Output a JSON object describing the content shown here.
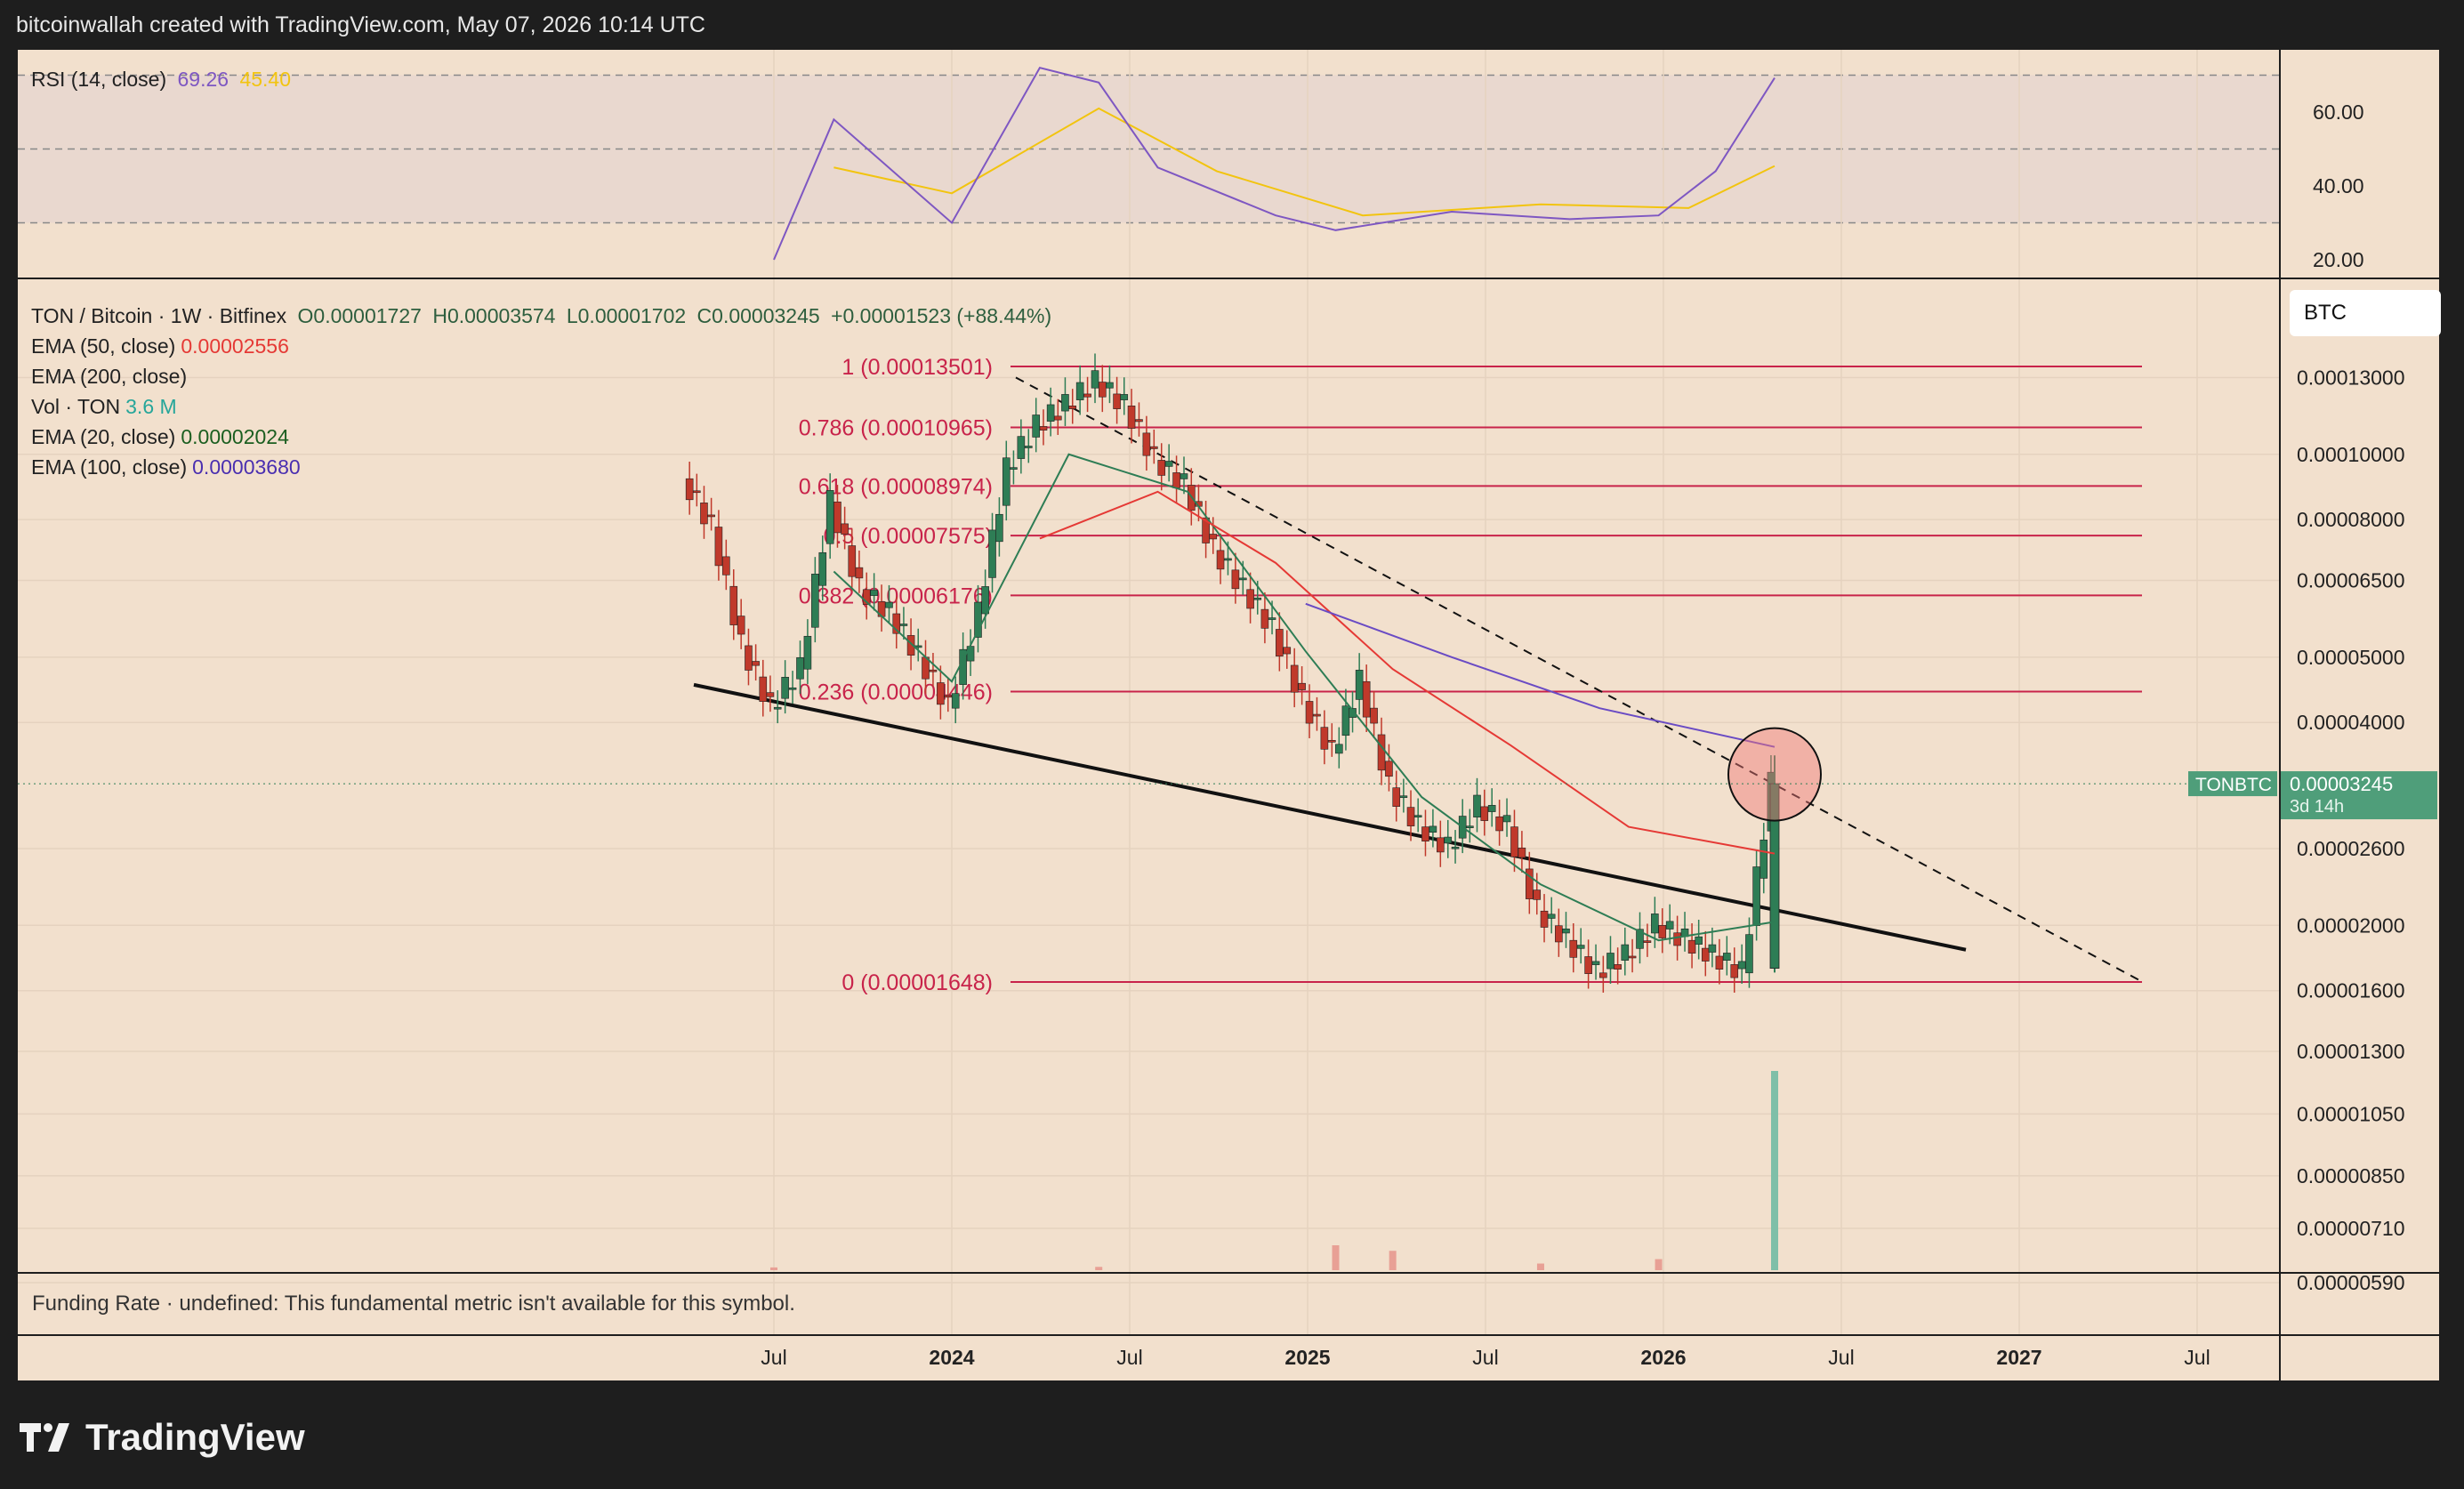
{
  "header": "bitcoinwallah created with TradingView.com, May 07, 2026 10:14 UTC",
  "rsi": {
    "label": "RSI (14, close)",
    "value": "69.26",
    "ma_value": "45.40",
    "ticks": [
      "60.00",
      "40.00",
      "20.00"
    ]
  },
  "legend": {
    "symbol": "TON / Bitcoin · 1W · Bitfinex",
    "o": "O0.00001727",
    "h": "H0.00003574",
    "l": "L0.00001702",
    "c": "C0.00003245",
    "change": "+0.00001523 (+88.44%)",
    "ema50_label": "EMA (50, close)",
    "ema50_value": "0.00002556",
    "ema200_label": "EMA (200, close)",
    "vol_label": "Vol · TON",
    "vol_value": "3.6 M",
    "ema20_label": "EMA (20, close)",
    "ema20_value": "0.00002024",
    "ema100_label": "EMA (100, close)",
    "ema100_value": "0.00003680"
  },
  "currency_button": "BTC",
  "price_ticks": [
    "0.00013000",
    "0.00010000",
    "0.00008000",
    "0.00006500",
    "0.00005000",
    "0.00004000",
    "0.00002600",
    "0.00002000",
    "0.00001600",
    "0.00001300",
    "0.00001050",
    "0.00000850",
    "0.00000710",
    "0.00000590"
  ],
  "price_tag": {
    "symbol": "TONBTC",
    "value": "0.00003245",
    "countdown": "3d 14h"
  },
  "time_ticks": [
    "Jul",
    "2024",
    "Jul",
    "2025",
    "Jul",
    "2026",
    "Jul",
    "2027",
    "Jul"
  ],
  "funding_text": "Funding Rate · undefined: This fundamental metric isn't available for this symbol.",
  "logo_text": "TradingView",
  "colors": {
    "background": "#f2e0cd",
    "up": "#2e7d55",
    "down": "#c0392b",
    "fib": "#c8234a",
    "ema20": "#2e7d55",
    "ema50": "#e53935",
    "ema100": "#6a4bc4",
    "rsi": "#7e57c2",
    "rsi_ma": "#f2c40f"
  },
  "chart_data": {
    "type": "candlestick",
    "symbol": "TON / Bitcoin",
    "interval": "1W",
    "exchange": "Bitfinex",
    "scale": "log",
    "fibonacci": [
      {
        "level": "1",
        "price": 0.00013501,
        "label": "1 (0.00013501)"
      },
      {
        "level": "0.786",
        "price": 0.00010965,
        "label": "0.786 (0.00010965)"
      },
      {
        "level": "0.618",
        "price": 8.974e-05,
        "label": "0.618 (0.00008974)"
      },
      {
        "level": "0.5",
        "price": 7.575e-05,
        "label": "0.5 (0.00007575)"
      },
      {
        "level": "0.382",
        "price": 6.176e-05,
        "label": "0.382 (0.00006176)"
      },
      {
        "level": "0.236",
        "price": 4.446e-05,
        "label": "0.236 (0.00004446)"
      },
      {
        "level": "0",
        "price": 1.648e-05,
        "label": "0 (0.00001648)"
      }
    ],
    "last_candle": {
      "open": 1.727e-05,
      "high": 3.574e-05,
      "low": 1.702e-05,
      "close": 3.245e-05
    },
    "price_path": [
      [
        "2023-04",
        9.2e-05
      ],
      [
        "2023-05",
        7.8e-05
      ],
      [
        "2023-06",
        5.2e-05
      ],
      [
        "2023-07",
        4.2e-05
      ],
      [
        "2023-08",
        4.8e-05
      ],
      [
        "2023-09",
        8.5e-05
      ],
      [
        "2023-10",
        6.3e-05
      ],
      [
        "2023-11",
        5.8e-05
      ],
      [
        "2023-12",
        5e-05
      ],
      [
        "2024-01",
        4.2e-05
      ],
      [
        "2024-02",
        5.8e-05
      ],
      [
        "2024-03",
        9.5e-05
      ],
      [
        "2024-04",
        0.00011
      ],
      [
        "2024-05",
        0.000118
      ],
      [
        "2024-06",
        0.000128
      ],
      [
        "2024-07",
        0.000118
      ],
      [
        "2024-08",
        9.8e-05
      ],
      [
        "2024-09",
        9e-05
      ],
      [
        "2024-10",
        7.2e-05
      ],
      [
        "2024-11",
        6.3e-05
      ],
      [
        "2024-12",
        5.5e-05
      ],
      [
        "2025-01",
        4.3e-05
      ],
      [
        "2025-02",
        3.6e-05
      ],
      [
        "2025-03",
        4.6e-05
      ],
      [
        "2025-04",
        3.2e-05
      ],
      [
        "2025-05",
        2.8e-05
      ],
      [
        "2025-06",
        2.6e-05
      ],
      [
        "2025-07",
        3e-05
      ],
      [
        "2025-08",
        2.8e-05
      ],
      [
        "2025-09",
        2.1e-05
      ],
      [
        "2025-10",
        1.9e-05
      ],
      [
        "2025-11",
        1.7e-05
      ],
      [
        "2025-12",
        1.8e-05
      ],
      [
        "2026-01",
        2e-05
      ],
      [
        "2026-02",
        1.9e-05
      ],
      [
        "2026-03",
        1.8e-05
      ],
      [
        "2026-04",
        1.7e-05
      ],
      [
        "2026-05",
        3.245e-05
      ]
    ],
    "ema20": [
      [
        "2023-09",
        6.7e-05
      ],
      [
        "2024-01",
        4.6e-05
      ],
      [
        "2024-05",
        0.0001
      ],
      [
        "2024-09",
        8.8e-05
      ],
      [
        "2025-01",
        5.1e-05
      ],
      [
        "2025-05",
        3.1e-05
      ],
      [
        "2025-09",
        2.3e-05
      ],
      [
        "2026-01",
        1.9e-05
      ],
      [
        "2026-05",
        2.024e-05
      ]
    ],
    "ema50": [
      [
        "2024-04",
        7.5e-05
      ],
      [
        "2024-08",
        8.8e-05
      ],
      [
        "2024-12",
        6.9e-05
      ],
      [
        "2025-04",
        4.8e-05
      ],
      [
        "2025-08",
        3.7e-05
      ],
      [
        "2025-12",
        2.8e-05
      ],
      [
        "2026-05",
        2.556e-05
      ]
    ],
    "ema100": [
      [
        "2025-01",
        6e-05
      ],
      [
        "2025-06",
        5e-05
      ],
      [
        "2025-11",
        4.2e-05
      ],
      [
        "2026-05",
        3.68e-05
      ]
    ],
    "rsi": [
      [
        "2023-07",
        20
      ],
      [
        "2023-09",
        58
      ],
      [
        "2024-01",
        30
      ],
      [
        "2024-04",
        72
      ],
      [
        "2024-06",
        68
      ],
      [
        "2024-08",
        45
      ],
      [
        "2024-12",
        32
      ],
      [
        "2025-02",
        28
      ],
      [
        "2025-06",
        33
      ],
      [
        "2025-10",
        31
      ],
      [
        "2026-01",
        32
      ],
      [
        "2026-03",
        44
      ],
      [
        "2026-05",
        69.26
      ]
    ],
    "rsi_ma": [
      [
        "2023-09",
        45
      ],
      [
        "2024-01",
        38
      ],
      [
        "2024-06",
        61
      ],
      [
        "2024-10",
        44
      ],
      [
        "2025-03",
        32
      ],
      [
        "2025-09",
        35
      ],
      [
        "2026-02",
        34
      ],
      [
        "2026-05",
        45.4
      ]
    ],
    "volume": [
      [
        "2023-07",
        0.05
      ],
      [
        "2024-06",
        0.06
      ],
      [
        "2025-02",
        0.45
      ],
      [
        "2025-04",
        0.35
      ],
      [
        "2025-09",
        0.12
      ],
      [
        "2026-01",
        0.2
      ],
      [
        "2026-05",
        3.6
      ]
    ],
    "volume_unit": "M TON"
  }
}
